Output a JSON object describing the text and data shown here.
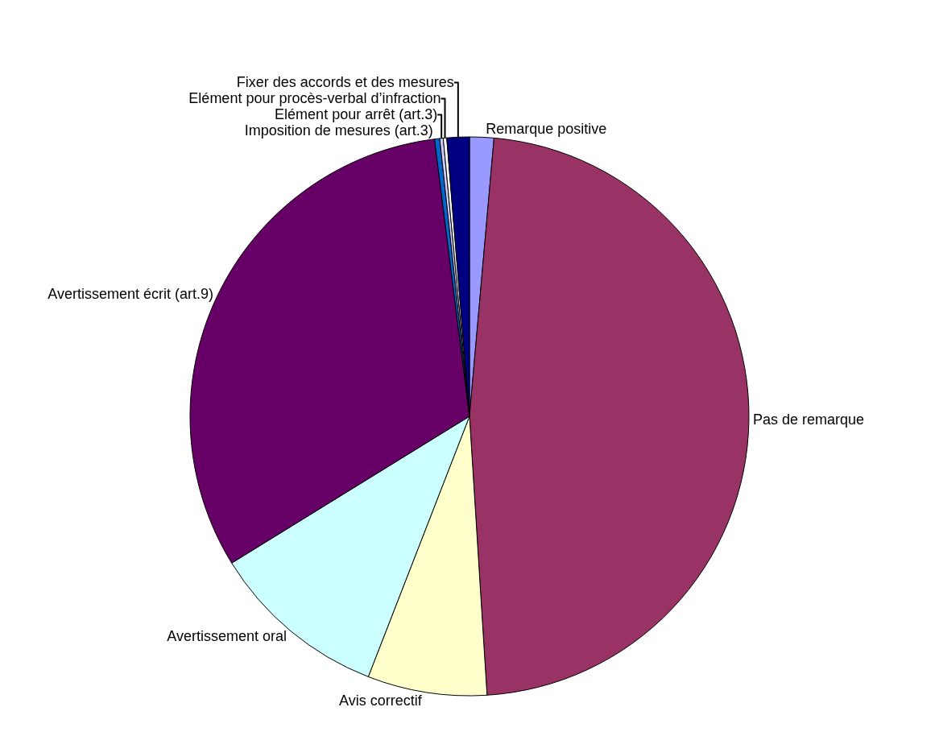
{
  "chart_data": {
    "type": "pie",
    "categories": [
      "Remarque positive",
      "Pas de remarque",
      "Avis correctif",
      "Avertissement oral",
      "Avertissement écrit (art.9)",
      "Imposition de mesures (art.3)",
      "Elément pour arrêt (art.3)",
      "Elément pour procès-verbal d’infraction",
      "Fixer des accords et des mesures"
    ],
    "values": [
      1.4,
      47.6,
      6.9,
      10.3,
      31.8,
      0.3,
      0.2,
      0.2,
      1.3
    ],
    "colors": [
      "#9999ff",
      "#993366",
      "#ffffcc",
      "#ccffff",
      "#660066",
      "#0066cc",
      "#ccccff",
      "#ffffff",
      "#000080"
    ],
    "legend": false
  }
}
